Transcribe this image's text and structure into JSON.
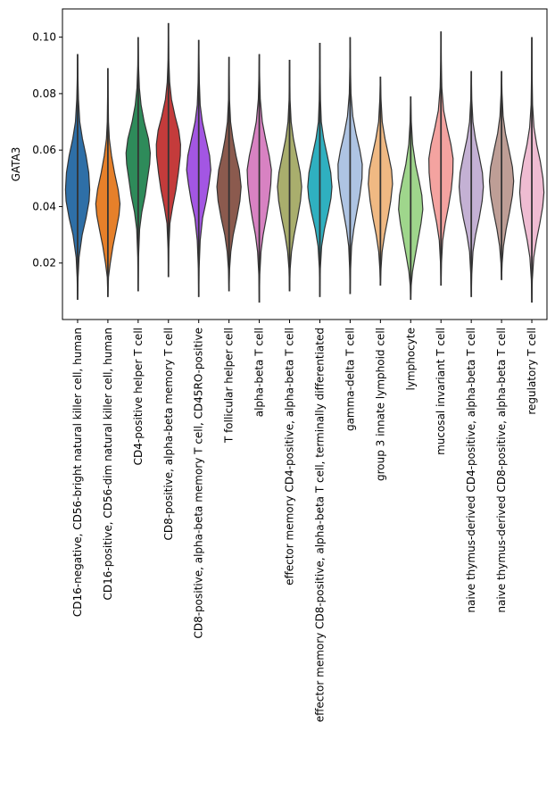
{
  "chart_data": {
    "type": "violin",
    "ylabel": "GATA3",
    "xlabel": "",
    "title": "",
    "ylim": [
      0.0,
      0.11
    ],
    "yticks": [
      0.02,
      0.04,
      0.06,
      0.08,
      0.1
    ],
    "ytick_labels": [
      "0.02",
      "0.04",
      "0.06",
      "0.08",
      "0.10"
    ],
    "grid": false,
    "legend": "none",
    "categories": [
      "CD16-negative, CD56-bright natural killer cell, human",
      "CD16-positive, CD56-dim natural killer cell, human",
      "CD4-positive helper T cell",
      "CD8-positive, alpha-beta memory T cell",
      "CD8-positive, alpha-beta memory T cell, CD45RO-positive",
      "T follicular helper cell",
      "alpha-beta T cell",
      "effector memory CD4-positive, alpha-beta T cell",
      "effector memory CD8-positive, alpha-beta T cell, terminally differentiated",
      "gamma-delta T cell",
      "group 3 innate lymphoid cell",
      "lymphocyte",
      "mucosal invariant T cell",
      "naive thymus-derived CD4-positive, alpha-beta T cell",
      "naive thymus-derived CD8-positive, alpha-beta T cell",
      "regulatory T cell"
    ],
    "colors": [
      "#2e6fa7",
      "#e6802a",
      "#2e8b5a",
      "#c43b3b",
      "#a356e3",
      "#8b5a4e",
      "#d882c2",
      "#a9ae6d",
      "#2fb0c0",
      "#aec4e3",
      "#f0b983",
      "#9fd68c",
      "#f4a3a0",
      "#c4b1d4",
      "#be9e96",
      "#efbcd2"
    ],
    "series": [
      {
        "min": 0.007,
        "max": 0.094,
        "width": [
          [
            0.007,
            0.0
          ],
          [
            0.015,
            0.04
          ],
          [
            0.022,
            0.12
          ],
          [
            0.03,
            0.38
          ],
          [
            0.036,
            0.7
          ],
          [
            0.042,
            0.95
          ],
          [
            0.046,
            1.0
          ],
          [
            0.052,
            0.92
          ],
          [
            0.058,
            0.7
          ],
          [
            0.064,
            0.4
          ],
          [
            0.07,
            0.18
          ],
          [
            0.078,
            0.07
          ],
          [
            0.085,
            0.03
          ],
          [
            0.094,
            0.0
          ]
        ]
      },
      {
        "min": 0.008,
        "max": 0.089,
        "width": [
          [
            0.008,
            0.0
          ],
          [
            0.015,
            0.05
          ],
          [
            0.02,
            0.2
          ],
          [
            0.026,
            0.42
          ],
          [
            0.032,
            0.7
          ],
          [
            0.037,
            0.92
          ],
          [
            0.041,
            1.0
          ],
          [
            0.046,
            0.85
          ],
          [
            0.052,
            0.55
          ],
          [
            0.058,
            0.3
          ],
          [
            0.064,
            0.12
          ],
          [
            0.07,
            0.05
          ],
          [
            0.08,
            0.02
          ],
          [
            0.089,
            0.0
          ]
        ]
      },
      {
        "min": 0.01,
        "max": 0.1,
        "width": [
          [
            0.01,
            0.0
          ],
          [
            0.022,
            0.03
          ],
          [
            0.032,
            0.12
          ],
          [
            0.038,
            0.3
          ],
          [
            0.044,
            0.58
          ],
          [
            0.05,
            0.78
          ],
          [
            0.055,
            0.95
          ],
          [
            0.059,
            1.0
          ],
          [
            0.064,
            0.85
          ],
          [
            0.07,
            0.5
          ],
          [
            0.076,
            0.24
          ],
          [
            0.082,
            0.1
          ],
          [
            0.09,
            0.03
          ],
          [
            0.1,
            0.0
          ]
        ]
      },
      {
        "min": 0.015,
        "max": 0.105,
        "width": [
          [
            0.015,
            0.0
          ],
          [
            0.025,
            0.03
          ],
          [
            0.034,
            0.12
          ],
          [
            0.04,
            0.35
          ],
          [
            0.046,
            0.62
          ],
          [
            0.052,
            0.82
          ],
          [
            0.058,
            0.98
          ],
          [
            0.062,
            1.0
          ],
          [
            0.067,
            0.85
          ],
          [
            0.072,
            0.55
          ],
          [
            0.078,
            0.25
          ],
          [
            0.084,
            0.1
          ],
          [
            0.092,
            0.03
          ],
          [
            0.105,
            0.0
          ]
        ]
      },
      {
        "min": 0.008,
        "max": 0.099,
        "width": [
          [
            0.008,
            0.0
          ],
          [
            0.018,
            0.03
          ],
          [
            0.028,
            0.12
          ],
          [
            0.036,
            0.32
          ],
          [
            0.042,
            0.62
          ],
          [
            0.048,
            0.85
          ],
          [
            0.053,
            1.0
          ],
          [
            0.058,
            0.9
          ],
          [
            0.064,
            0.6
          ],
          [
            0.07,
            0.3
          ],
          [
            0.076,
            0.12
          ],
          [
            0.084,
            0.05
          ],
          [
            0.092,
            0.02
          ],
          [
            0.099,
            0.0
          ]
        ]
      },
      {
        "min": 0.01,
        "max": 0.093,
        "width": [
          [
            0.01,
            0.0
          ],
          [
            0.018,
            0.05
          ],
          [
            0.024,
            0.15
          ],
          [
            0.03,
            0.35
          ],
          [
            0.036,
            0.65
          ],
          [
            0.042,
            0.9
          ],
          [
            0.047,
            1.0
          ],
          [
            0.053,
            0.85
          ],
          [
            0.058,
            0.58
          ],
          [
            0.064,
            0.32
          ],
          [
            0.07,
            0.13
          ],
          [
            0.078,
            0.04
          ],
          [
            0.086,
            0.02
          ],
          [
            0.093,
            0.0
          ]
        ]
      },
      {
        "min": 0.006,
        "max": 0.094,
        "width": [
          [
            0.006,
            0.0
          ],
          [
            0.016,
            0.04
          ],
          [
            0.024,
            0.14
          ],
          [
            0.03,
            0.32
          ],
          [
            0.036,
            0.58
          ],
          [
            0.042,
            0.8
          ],
          [
            0.048,
            0.95
          ],
          [
            0.053,
            1.0
          ],
          [
            0.058,
            0.82
          ],
          [
            0.064,
            0.52
          ],
          [
            0.07,
            0.25
          ],
          [
            0.078,
            0.08
          ],
          [
            0.086,
            0.03
          ],
          [
            0.094,
            0.0
          ]
        ]
      },
      {
        "min": 0.01,
        "max": 0.092,
        "width": [
          [
            0.01,
            0.0
          ],
          [
            0.018,
            0.05
          ],
          [
            0.024,
            0.16
          ],
          [
            0.03,
            0.38
          ],
          [
            0.036,
            0.66
          ],
          [
            0.042,
            0.9
          ],
          [
            0.047,
            1.0
          ],
          [
            0.052,
            0.88
          ],
          [
            0.058,
            0.6
          ],
          [
            0.064,
            0.32
          ],
          [
            0.07,
            0.13
          ],
          [
            0.078,
            0.04
          ],
          [
            0.086,
            0.02
          ],
          [
            0.092,
            0.0
          ]
        ]
      },
      {
        "min": 0.008,
        "max": 0.098,
        "width": [
          [
            0.008,
            0.0
          ],
          [
            0.018,
            0.04
          ],
          [
            0.026,
            0.15
          ],
          [
            0.032,
            0.38
          ],
          [
            0.038,
            0.7
          ],
          [
            0.043,
            0.92
          ],
          [
            0.047,
            1.0
          ],
          [
            0.052,
            0.9
          ],
          [
            0.058,
            0.62
          ],
          [
            0.064,
            0.32
          ],
          [
            0.07,
            0.12
          ],
          [
            0.078,
            0.05
          ],
          [
            0.088,
            0.02
          ],
          [
            0.098,
            0.0
          ]
        ]
      },
      {
        "min": 0.009,
        "max": 0.1,
        "width": [
          [
            0.009,
            0.0
          ],
          [
            0.018,
            0.04
          ],
          [
            0.026,
            0.12
          ],
          [
            0.032,
            0.3
          ],
          [
            0.038,
            0.55
          ],
          [
            0.044,
            0.8
          ],
          [
            0.05,
            0.98
          ],
          [
            0.055,
            1.0
          ],
          [
            0.06,
            0.8
          ],
          [
            0.066,
            0.48
          ],
          [
            0.072,
            0.22
          ],
          [
            0.08,
            0.07
          ],
          [
            0.09,
            0.02
          ],
          [
            0.1,
            0.0
          ]
        ]
      },
      {
        "min": 0.012,
        "max": 0.086,
        "width": [
          [
            0.012,
            0.0
          ],
          [
            0.018,
            0.05
          ],
          [
            0.024,
            0.14
          ],
          [
            0.03,
            0.35
          ],
          [
            0.036,
            0.62
          ],
          [
            0.042,
            0.85
          ],
          [
            0.048,
            1.0
          ],
          [
            0.053,
            0.92
          ],
          [
            0.058,
            0.68
          ],
          [
            0.064,
            0.38
          ],
          [
            0.07,
            0.15
          ],
          [
            0.078,
            0.05
          ],
          [
            0.086,
            0.0
          ]
        ]
      },
      {
        "min": 0.007,
        "max": 0.079,
        "width": [
          [
            0.007,
            0.0
          ],
          [
            0.012,
            0.04
          ],
          [
            0.017,
            0.15
          ],
          [
            0.022,
            0.35
          ],
          [
            0.028,
            0.6
          ],
          [
            0.034,
            0.85
          ],
          [
            0.039,
            1.0
          ],
          [
            0.044,
            0.92
          ],
          [
            0.049,
            0.7
          ],
          [
            0.055,
            0.4
          ],
          [
            0.062,
            0.16
          ],
          [
            0.07,
            0.05
          ],
          [
            0.079,
            0.0
          ]
        ]
      },
      {
        "min": 0.012,
        "max": 0.102,
        "width": [
          [
            0.012,
            0.0
          ],
          [
            0.02,
            0.04
          ],
          [
            0.028,
            0.14
          ],
          [
            0.034,
            0.35
          ],
          [
            0.04,
            0.62
          ],
          [
            0.046,
            0.85
          ],
          [
            0.052,
            0.98
          ],
          [
            0.057,
            1.0
          ],
          [
            0.062,
            0.82
          ],
          [
            0.068,
            0.5
          ],
          [
            0.074,
            0.22
          ],
          [
            0.082,
            0.07
          ],
          [
            0.092,
            0.02
          ],
          [
            0.102,
            0.0
          ]
        ]
      },
      {
        "min": 0.008,
        "max": 0.088,
        "width": [
          [
            0.008,
            0.0
          ],
          [
            0.016,
            0.04
          ],
          [
            0.024,
            0.14
          ],
          [
            0.03,
            0.36
          ],
          [
            0.036,
            0.66
          ],
          [
            0.042,
            0.9
          ],
          [
            0.047,
            1.0
          ],
          [
            0.052,
            0.92
          ],
          [
            0.058,
            0.65
          ],
          [
            0.064,
            0.35
          ],
          [
            0.07,
            0.14
          ],
          [
            0.078,
            0.04
          ],
          [
            0.088,
            0.0
          ]
        ]
      },
      {
        "min": 0.014,
        "max": 0.088,
        "width": [
          [
            0.014,
            0.0
          ],
          [
            0.02,
            0.05
          ],
          [
            0.026,
            0.16
          ],
          [
            0.032,
            0.38
          ],
          [
            0.038,
            0.66
          ],
          [
            0.044,
            0.9
          ],
          [
            0.049,
            1.0
          ],
          [
            0.054,
            0.9
          ],
          [
            0.06,
            0.62
          ],
          [
            0.066,
            0.32
          ],
          [
            0.072,
            0.13
          ],
          [
            0.08,
            0.04
          ],
          [
            0.088,
            0.0
          ]
        ]
      },
      {
        "min": 0.006,
        "max": 0.1,
        "width": [
          [
            0.006,
            0.0
          ],
          [
            0.014,
            0.04
          ],
          [
            0.022,
            0.16
          ],
          [
            0.028,
            0.38
          ],
          [
            0.034,
            0.66
          ],
          [
            0.04,
            0.9
          ],
          [
            0.045,
            1.0
          ],
          [
            0.05,
            0.92
          ],
          [
            0.056,
            0.7
          ],
          [
            0.062,
            0.4
          ],
          [
            0.068,
            0.18
          ],
          [
            0.076,
            0.06
          ],
          [
            0.088,
            0.02
          ],
          [
            0.1,
            0.0
          ]
        ]
      }
    ]
  }
}
